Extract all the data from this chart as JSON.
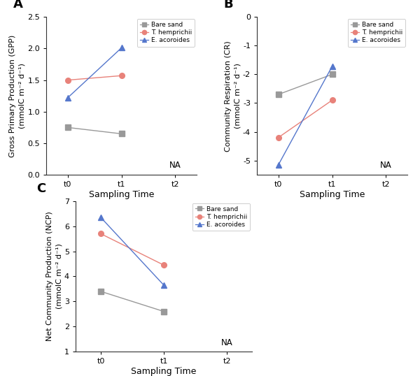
{
  "panels": [
    {
      "label": "A",
      "xlabel": "Sampling Time",
      "ylabel": "Gross Primary Production (GPP)\n(mmolC m⁻² d⁻¹)",
      "ylim": [
        0.0,
        2.5
      ],
      "yticks": [
        0.0,
        0.5,
        1.0,
        1.5,
        2.0,
        2.5
      ],
      "ytick_labels": [
        "0.0",
        "0.5",
        "1.0",
        "1.5",
        "2.0",
        "2.5"
      ],
      "series": [
        {
          "x": [
            0,
            1
          ],
          "y": [
            0.75,
            0.65
          ],
          "color": "#999999",
          "marker": "s",
          "label": "Bare sand"
        },
        {
          "x": [
            0,
            1
          ],
          "y": [
            1.5,
            1.57
          ],
          "color": "#E8827A",
          "marker": "o",
          "label": "T. hemprichii"
        },
        {
          "x": [
            0,
            1
          ],
          "y": [
            1.22,
            2.01
          ],
          "color": "#5577CC",
          "marker": "^",
          "label": "E. acoroides"
        }
      ]
    },
    {
      "label": "B",
      "xlabel": "Sampling Time",
      "ylabel": "Community Respiration (CR)\n(mmolC m⁻² d⁻¹)",
      "ylim": [
        -5.5,
        0.0
      ],
      "yticks": [
        -5,
        -4,
        -3,
        -2,
        -1,
        0
      ],
      "ytick_labels": [
        "-5",
        "-4",
        "-3",
        "-2",
        "-1",
        "0"
      ],
      "series": [
        {
          "x": [
            0,
            1
          ],
          "y": [
            -2.7,
            -2.0
          ],
          "color": "#999999",
          "marker": "s",
          "label": "Bare sand"
        },
        {
          "x": [
            0,
            1
          ],
          "y": [
            -4.2,
            -2.9
          ],
          "color": "#E8827A",
          "marker": "o",
          "label": "T. hemprichii"
        },
        {
          "x": [
            0,
            1
          ],
          "y": [
            -5.15,
            -1.72
          ],
          "color": "#5577CC",
          "marker": "^",
          "label": "E. acoroides"
        }
      ]
    },
    {
      "label": "C",
      "xlabel": "Sampling Time",
      "ylabel": "Net Community Production (NCP)\n(mmolC m⁻² d⁻¹)",
      "ylim": [
        1.0,
        7.0
      ],
      "yticks": [
        1,
        2,
        3,
        4,
        5,
        6,
        7
      ],
      "ytick_labels": [
        "1",
        "2",
        "3",
        "4",
        "5",
        "6",
        "7"
      ],
      "series": [
        {
          "x": [
            0,
            1
          ],
          "y": [
            3.4,
            2.6
          ],
          "color": "#999999",
          "marker": "s",
          "label": "Bare sand"
        },
        {
          "x": [
            0,
            1
          ],
          "y": [
            5.7,
            4.45
          ],
          "color": "#E8827A",
          "marker": "o",
          "label": "T. hemprichii"
        },
        {
          "x": [
            0,
            1
          ],
          "y": [
            6.35,
            3.65
          ],
          "color": "#5577CC",
          "marker": "^",
          "label": "E. acoroides"
        }
      ]
    }
  ],
  "xticks": [
    "t0",
    "t1",
    "t2"
  ],
  "figsize": [
    6.0,
    5.38
  ],
  "dpi": 100
}
